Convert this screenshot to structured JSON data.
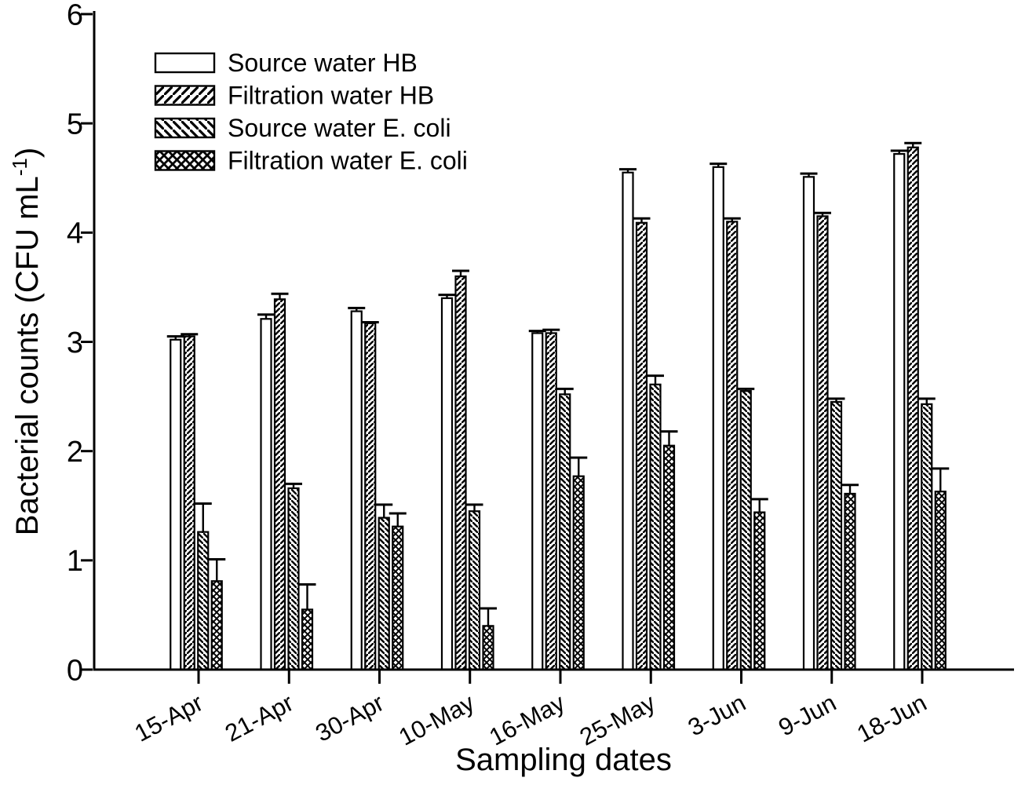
{
  "figure": {
    "background": "#ffffff",
    "ink": "#000000"
  },
  "chart_data": {
    "type": "bar",
    "title": "",
    "xlabel": "Sampling dates",
    "ylabel": "Bacterial counts (CFU mL-1)",
    "ylabel_parts": {
      "main": "Bacterial counts (CFU mL",
      "sup": "-1",
      "close": ")"
    },
    "ylim": [
      0,
      6
    ],
    "yticks": [
      0,
      1,
      2,
      3,
      4,
      5,
      6
    ],
    "grid": false,
    "legend_position": "upper-left-inside",
    "error_bars": "upper-only",
    "categories": [
      "15-Apr",
      "21-Apr",
      "30-Apr",
      "10-May",
      "16-May",
      "25-May",
      "3-Jun",
      "9-Jun",
      "18-Jun"
    ],
    "series": [
      {
        "name": "Source water HB",
        "pattern": "none",
        "values": [
          3.02,
          3.21,
          3.28,
          3.4,
          3.08,
          4.55,
          4.6,
          4.51,
          4.72
        ],
        "errors": [
          0.03,
          0.04,
          0.03,
          0.03,
          0.02,
          0.03,
          0.03,
          0.03,
          0.03
        ]
      },
      {
        "name": "Filtration water HB",
        "pattern": "diagonal-up",
        "values": [
          3.05,
          3.39,
          3.17,
          3.6,
          3.08,
          4.09,
          4.1,
          4.15,
          4.78
        ],
        "errors": [
          0.02,
          0.05,
          0.01,
          0.05,
          0.03,
          0.04,
          0.03,
          0.03,
          0.04
        ]
      },
      {
        "name": "Source water E. coli",
        "pattern": "diagonal-down",
        "values": [
          1.26,
          1.66,
          1.39,
          1.45,
          2.52,
          2.61,
          2.55,
          2.45,
          2.43
        ],
        "errors": [
          0.26,
          0.04,
          0.12,
          0.06,
          0.05,
          0.08,
          0.02,
          0.03,
          0.05
        ]
      },
      {
        "name": "Filtration water E. coli",
        "pattern": "crosshatch",
        "values": [
          0.81,
          0.55,
          1.31,
          0.4,
          1.77,
          2.05,
          1.44,
          1.61,
          1.63
        ],
        "errors": [
          0.2,
          0.23,
          0.12,
          0.16,
          0.17,
          0.13,
          0.12,
          0.08,
          0.21
        ]
      }
    ]
  }
}
